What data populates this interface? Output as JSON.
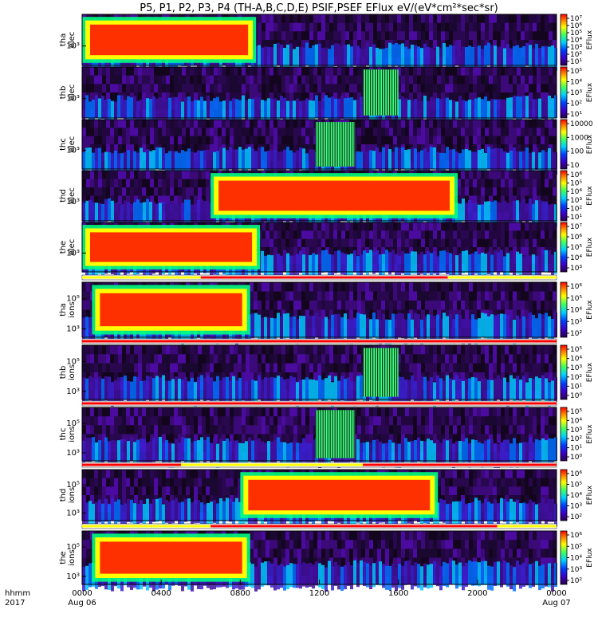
{
  "title": "P5, P1, P2, P3, P4 (TH-A,B,C,D,E) PSIF,PSEF EFlux eV/(eV*cm²*sec*sr)",
  "colorbar_label": "EFlux",
  "x_axis": {
    "corner_top": "hhmm",
    "corner_bottom": "2017",
    "ticks": [
      "0000",
      "0400",
      "0800",
      "1200",
      "1600",
      "2000",
      "0000"
    ],
    "tick_hours": [
      0,
      4,
      8,
      12,
      16,
      20,
      24
    ],
    "dates": [
      "Aug 06",
      "Aug 07"
    ]
  },
  "chart_data": {
    "type": "heatmap",
    "x_unit": "hours UT from 2017-08-06 00:00",
    "x_range": [
      0,
      24
    ],
    "panels": [
      {
        "id": "tha_elec",
        "label_top": "tha",
        "label_bottom": "elec",
        "ytick": "10³",
        "cb_ticks": [
          "10⁷",
          "10⁶",
          "10⁵",
          "10⁴",
          "10³",
          "10²",
          "10¹"
        ],
        "hot_hours": [
          [
            0.0,
            8.8
          ]
        ],
        "sparse_after": 11.8
      },
      {
        "id": "thb_elec",
        "label_top": "thb",
        "label_bottom": "elec",
        "ytick": "10³",
        "cb_ticks": [
          "10⁵",
          "10⁴",
          "10³",
          "10²",
          "10¹"
        ],
        "hot_hours": [],
        "stripe_hours": [
          [
            14.2,
            16.0
          ]
        ]
      },
      {
        "id": "thc_elec",
        "label_top": "thc",
        "label_bottom": "elec",
        "ytick": "10³",
        "cb_ticks": [
          "10000",
          "1000",
          "100",
          "10"
        ],
        "hot_hours": [],
        "stripe_hours": [
          [
            11.8,
            13.8
          ]
        ]
      },
      {
        "id": "thd_elec",
        "label_top": "thd",
        "label_bottom": "elec",
        "ytick": "10³",
        "cb_ticks": [
          "10⁶",
          "10⁵",
          "10⁴",
          "10³",
          "10²",
          "10¹"
        ],
        "hot_hours": [
          [
            6.5,
            19.0
          ]
        ]
      },
      {
        "id": "the_elec",
        "label_top": "the",
        "label_bottom": "elec",
        "ytick": "10³",
        "cb_ticks": [
          "10⁷",
          "10⁶",
          "10⁵",
          "10⁴",
          "10³"
        ],
        "hot_hours": [
          [
            0.0,
            9.0
          ]
        ],
        "sparse_after": 11.8
      },
      {
        "id": "tha_ions",
        "label_top": "tha",
        "label_bottom": "ions",
        "yticks": [
          "10⁵",
          "10³"
        ],
        "cb_ticks": [
          "10⁶",
          "10⁵",
          "10⁴",
          "10³",
          "10²"
        ],
        "hot_hours": [
          [
            0.5,
            8.5
          ]
        ],
        "sparse_after": 11.8
      },
      {
        "id": "thb_ions",
        "label_top": "thb",
        "label_bottom": "ions",
        "yticks": [
          "10⁵",
          "10³"
        ],
        "cb_ticks": [
          "10⁵",
          "10⁴",
          "10³",
          "10²",
          "10¹",
          "10⁰"
        ],
        "hot_hours": [],
        "stripe_hours": [
          [
            14.2,
            16.0
          ]
        ]
      },
      {
        "id": "thc_ions",
        "label_top": "thc",
        "label_bottom": "ions",
        "yticks": [
          "10⁵",
          "10³"
        ],
        "cb_ticks": [
          "10⁵",
          "10⁴",
          "10³",
          "10²",
          "10¹",
          "10⁰"
        ],
        "hot_hours": [],
        "stripe_hours": [
          [
            11.8,
            13.8
          ]
        ]
      },
      {
        "id": "thd_ions",
        "label_top": "thd",
        "label_bottom": "ions",
        "yticks": [
          "10⁵",
          "10³"
        ],
        "cb_ticks": [
          "10⁶",
          "10⁵",
          "10⁴",
          "10³",
          "10²"
        ],
        "hot_hours": [
          [
            8.0,
            18.0
          ]
        ]
      },
      {
        "id": "the_ions",
        "label_top": "the",
        "label_bottom": "ions",
        "yticks": [
          "10⁵",
          "10³"
        ],
        "cb_ticks": [
          "10⁶",
          "10⁵",
          "10⁴",
          "10³",
          "10²"
        ],
        "hot_hours": [
          [
            0.5,
            8.5
          ]
        ],
        "sparse_after": 11.8
      }
    ],
    "mode_bars": [
      {
        "segments": [
          [
            0,
            6,
            "#ffff00"
          ],
          [
            6,
            18.5,
            "#ff0000"
          ],
          [
            18.5,
            24,
            "#ffff00"
          ]
        ]
      },
      {
        "segments": [
          [
            0,
            24,
            "#ff0000"
          ]
        ]
      },
      {
        "segments": [
          [
            0,
            24,
            "#ff0000"
          ]
        ]
      },
      {
        "segments": [
          [
            0,
            5,
            "#ff0000"
          ],
          [
            5,
            14.2,
            "#ffff00"
          ],
          [
            14.2,
            24,
            "#ff0000"
          ]
        ]
      },
      {
        "segments": [
          [
            0,
            6.5,
            "#ffff00"
          ],
          [
            6.5,
            21,
            "#ff0000"
          ],
          [
            21,
            24,
            "#ffff00"
          ]
        ]
      }
    ]
  }
}
